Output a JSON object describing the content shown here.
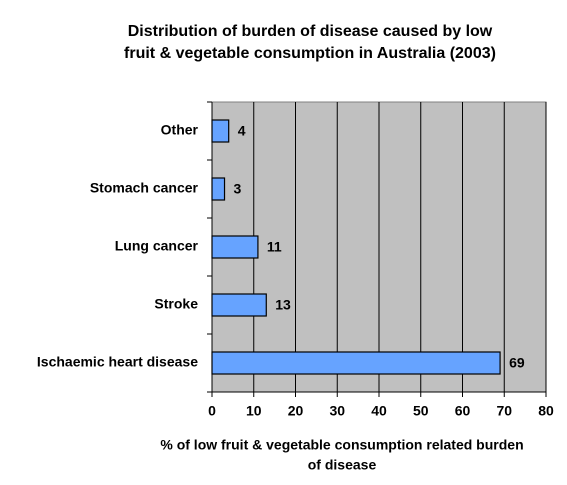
{
  "chart_data": {
    "type": "barh",
    "title": [
      "Distribution of burden of disease caused by low",
      "fruit & vegetable consumption in Australia (2003)"
    ],
    "xlabel": [
      "%  of low fruit & vegetable consumption related burden",
      "of disease"
    ],
    "categories": [
      "Other",
      "Stomach cancer",
      "Lung cancer",
      "Stroke",
      "Ischaemic heart disease"
    ],
    "values": [
      4,
      3,
      11,
      13,
      69
    ],
    "color": "#66a3ff",
    "xlim": [
      0,
      80
    ],
    "xticks": [
      0,
      10,
      20,
      30,
      40,
      50,
      60,
      70,
      80
    ],
    "grid": true
  }
}
